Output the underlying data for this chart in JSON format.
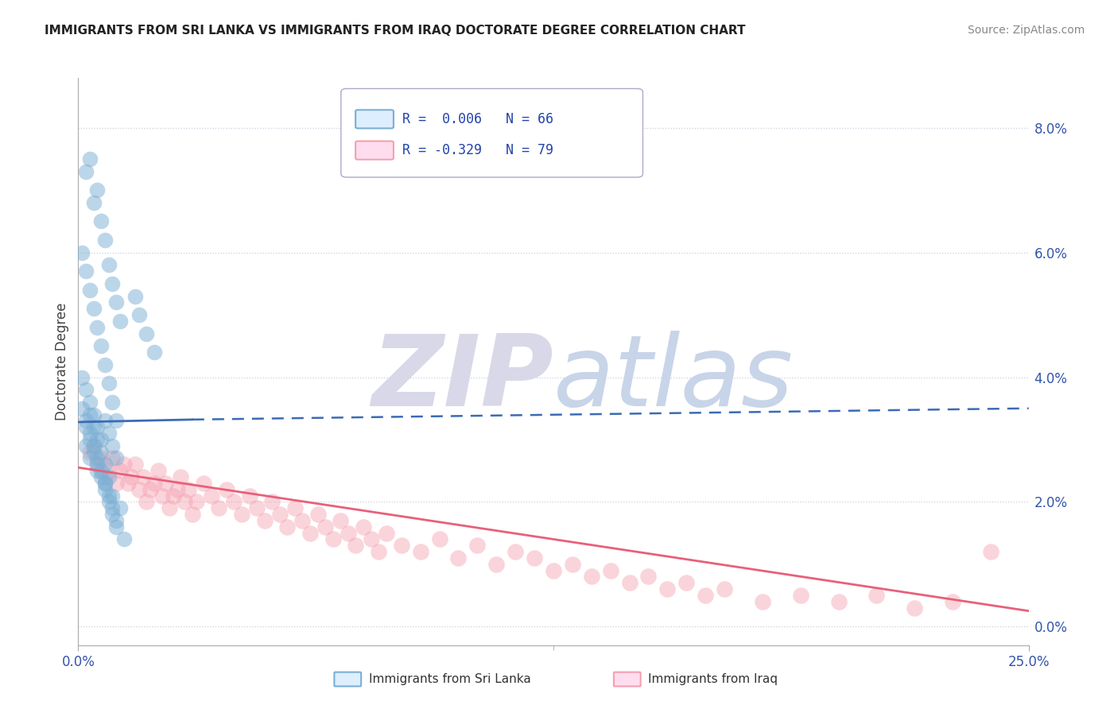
{
  "title": "IMMIGRANTS FROM SRI LANKA VS IMMIGRANTS FROM IRAQ DOCTORATE DEGREE CORRELATION CHART",
  "source": "Source: ZipAtlas.com",
  "ylabel": "Doctorate Degree",
  "y_tick_values": [
    0.0,
    2.0,
    4.0,
    6.0,
    8.0
  ],
  "x_range": [
    0.0,
    25.0
  ],
  "y_range": [
    -0.3,
    8.8
  ],
  "legend_sri_lanka": "Immigrants from Sri Lanka",
  "legend_iraq": "Immigrants from Iraq",
  "r_sri_lanka": "R =  0.006",
  "n_sri_lanka": "N = 66",
  "r_iraq": "R = -0.329",
  "n_iraq": "N = 79",
  "color_sri_lanka": "#7BAFD4",
  "color_iraq": "#F4A0B0",
  "color_trend_sri_lanka": "#3B6BB5",
  "color_trend_iraq": "#E8607A",
  "background_color": "#FFFFFF",
  "grid_color": "#CCCCDD",
  "watermark_color": "#E0E4F0",
  "sri_lanka_x": [
    0.2,
    0.3,
    0.4,
    0.5,
    0.6,
    0.7,
    0.8,
    0.9,
    1.0,
    1.1,
    0.1,
    0.2,
    0.3,
    0.4,
    0.5,
    0.6,
    0.7,
    0.8,
    0.9,
    1.0,
    0.1,
    0.2,
    0.3,
    0.4,
    0.5,
    0.6,
    0.7,
    0.8,
    0.9,
    1.0,
    0.1,
    0.2,
    0.3,
    0.4,
    0.5,
    0.6,
    0.7,
    0.8,
    0.9,
    1.0,
    0.2,
    0.3,
    0.4,
    0.5,
    0.6,
    0.7,
    0.8,
    0.9,
    1.0,
    1.2,
    0.3,
    0.4,
    0.5,
    0.6,
    0.7,
    0.8,
    1.5,
    1.6,
    1.8,
    2.0,
    0.2,
    0.3,
    0.5,
    0.7,
    0.9,
    1.1
  ],
  "sri_lanka_y": [
    7.3,
    7.5,
    6.8,
    7.0,
    6.5,
    6.2,
    5.8,
    5.5,
    5.2,
    4.9,
    6.0,
    5.7,
    5.4,
    5.1,
    4.8,
    4.5,
    4.2,
    3.9,
    3.6,
    3.3,
    4.0,
    3.8,
    3.6,
    3.4,
    3.2,
    3.0,
    3.3,
    3.1,
    2.9,
    2.7,
    3.5,
    3.3,
    3.1,
    2.9,
    2.7,
    2.5,
    2.3,
    2.1,
    1.9,
    1.7,
    3.2,
    3.0,
    2.8,
    2.6,
    2.4,
    2.2,
    2.0,
    1.8,
    1.6,
    1.4,
    3.4,
    3.2,
    3.0,
    2.8,
    2.6,
    2.4,
    5.3,
    5.0,
    4.7,
    4.4,
    2.9,
    2.7,
    2.5,
    2.3,
    2.1,
    1.9
  ],
  "iraq_x": [
    0.3,
    0.5,
    0.7,
    0.9,
    1.1,
    1.3,
    1.5,
    1.7,
    1.9,
    2.1,
    2.3,
    2.5,
    2.7,
    2.9,
    3.1,
    3.3,
    3.5,
    3.7,
    3.9,
    4.1,
    4.3,
    4.5,
    4.7,
    4.9,
    5.1,
    5.3,
    5.5,
    5.7,
    5.9,
    6.1,
    6.3,
    6.5,
    6.7,
    6.9,
    7.1,
    7.3,
    7.5,
    7.7,
    7.9,
    8.1,
    8.5,
    9.0,
    9.5,
    10.0,
    10.5,
    11.0,
    11.5,
    12.0,
    12.5,
    13.0,
    13.5,
    14.0,
    14.5,
    15.0,
    15.5,
    16.0,
    16.5,
    17.0,
    18.0,
    19.0,
    20.0,
    21.0,
    22.0,
    23.0,
    24.0,
    0.4,
    0.6,
    0.8,
    1.0,
    1.2,
    1.4,
    1.6,
    1.8,
    2.0,
    2.2,
    2.4,
    2.6,
    2.8,
    3.0
  ],
  "iraq_y": [
    2.8,
    2.6,
    2.4,
    2.7,
    2.5,
    2.3,
    2.6,
    2.4,
    2.2,
    2.5,
    2.3,
    2.1,
    2.4,
    2.2,
    2.0,
    2.3,
    2.1,
    1.9,
    2.2,
    2.0,
    1.8,
    2.1,
    1.9,
    1.7,
    2.0,
    1.8,
    1.6,
    1.9,
    1.7,
    1.5,
    1.8,
    1.6,
    1.4,
    1.7,
    1.5,
    1.3,
    1.6,
    1.4,
    1.2,
    1.5,
    1.3,
    1.2,
    1.4,
    1.1,
    1.3,
    1.0,
    1.2,
    1.1,
    0.9,
    1.0,
    0.8,
    0.9,
    0.7,
    0.8,
    0.6,
    0.7,
    0.5,
    0.6,
    0.4,
    0.5,
    0.4,
    0.5,
    0.3,
    0.4,
    1.2,
    2.9,
    2.7,
    2.5,
    2.3,
    2.6,
    2.4,
    2.2,
    2.0,
    2.3,
    2.1,
    1.9,
    2.2,
    2.0,
    1.8
  ],
  "sri_lanka_trend_x0": 0.0,
  "sri_lanka_trend_y0": 3.28,
  "sri_lanka_trend_x1": 3.0,
  "sri_lanka_trend_y1": 3.32,
  "sri_lanka_dash_x0": 3.0,
  "sri_lanka_dash_y0": 3.32,
  "sri_lanka_dash_x1": 25.0,
  "sri_lanka_dash_y1": 3.5,
  "iraq_trend_x0": 0.0,
  "iraq_trend_y0": 2.55,
  "iraq_trend_x1": 25.0,
  "iraq_trend_y1": 0.25
}
